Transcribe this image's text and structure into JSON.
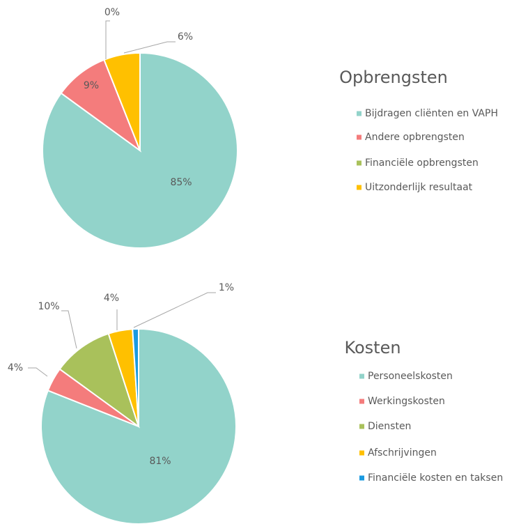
{
  "chart_data": [
    {
      "type": "pie",
      "title": "Opbrengsten",
      "labels": [
        "Bijdragen cliënten en VAPH",
        "Andere opbrengsten",
        "Financiële opbrengsten",
        "Uitzonderlijk resultaat"
      ],
      "values": [
        85,
        9,
        0,
        6
      ],
      "value_labels": [
        "85%",
        "9%",
        "0%",
        "6%"
      ],
      "colors": [
        "#92d3ca",
        "#f47c7c",
        "#a9c15b",
        "#ffc000"
      ]
    },
    {
      "type": "pie",
      "title": "Kosten",
      "labels": [
        "Personeelskosten",
        "Werkingskosten",
        "Diensten",
        "Afschrijvingen",
        "Financiële kosten en taksen"
      ],
      "values": [
        81,
        4,
        10,
        4,
        1
      ],
      "value_labels": [
        "81%",
        "4%",
        "10%",
        "4%",
        "1%"
      ],
      "colors": [
        "#92d3ca",
        "#f47c7c",
        "#a9c15b",
        "#ffc000",
        "#1a9ae0"
      ]
    }
  ]
}
